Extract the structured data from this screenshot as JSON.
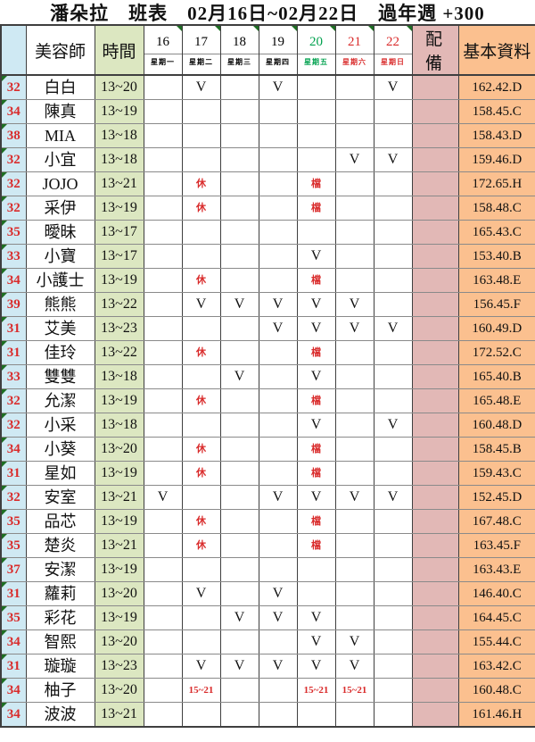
{
  "title": "潘朵拉　班表　02月16日~02月22日　過年週 +300",
  "header": {
    "beautician": "美容師",
    "time": "時間",
    "equipment": "配 備",
    "basic_info": "基本資料"
  },
  "days": [
    {
      "date": "16",
      "weekday": "星期一",
      "tone": "black"
    },
    {
      "date": "17",
      "weekday": "星期二",
      "tone": "black"
    },
    {
      "date": "18",
      "weekday": "星期三",
      "tone": "black"
    },
    {
      "date": "19",
      "weekday": "星期四",
      "tone": "black"
    },
    {
      "date": "20",
      "weekday": "星期五",
      "tone": "green"
    },
    {
      "date": "21",
      "weekday": "星期六",
      "tone": "red"
    },
    {
      "date": "22",
      "weekday": "星期日",
      "tone": "red"
    }
  ],
  "rows": [
    {
      "num": "32",
      "name": "白白",
      "time": "13~20",
      "days": [
        "",
        "V",
        "",
        "V",
        "",
        "",
        "V"
      ],
      "equipment": "",
      "info": "162.42.D"
    },
    {
      "num": "34",
      "name": "陳真",
      "time": "13~19",
      "days": [
        "",
        "",
        "",
        "",
        "",
        "",
        ""
      ],
      "equipment": "",
      "info": "158.45.C"
    },
    {
      "num": "38",
      "name": "MIA",
      "time": "13~18",
      "days": [
        "",
        "",
        "",
        "",
        "",
        "",
        ""
      ],
      "equipment": "",
      "info": "158.43.D"
    },
    {
      "num": "32",
      "name": "小宜",
      "time": "13~18",
      "days": [
        "",
        "",
        "",
        "",
        "",
        "V",
        "V"
      ],
      "equipment": "",
      "info": "159.46.D"
    },
    {
      "num": "32",
      "name": "JOJO",
      "time": "13~21",
      "days": [
        "",
        "休",
        "",
        "",
        "檔",
        "",
        ""
      ],
      "equipment": "",
      "info": "172.65.H"
    },
    {
      "num": "32",
      "name": "采伊",
      "time": "13~19",
      "days": [
        "",
        "休",
        "",
        "",
        "檔",
        "",
        ""
      ],
      "equipment": "",
      "info": "158.48.C"
    },
    {
      "num": "35",
      "name": "曖昧",
      "time": "13~17",
      "days": [
        "",
        "",
        "",
        "",
        "",
        "",
        ""
      ],
      "equipment": "",
      "info": "165.43.C"
    },
    {
      "num": "33",
      "name": "小寶",
      "time": "13~17",
      "days": [
        "",
        "",
        "",
        "",
        "V",
        "",
        ""
      ],
      "equipment": "",
      "info": "153.40.B"
    },
    {
      "num": "34",
      "name": "小護士",
      "time": "13~19",
      "days": [
        "",
        "休",
        "",
        "",
        "檔",
        "",
        ""
      ],
      "equipment": "",
      "info": "163.48.E"
    },
    {
      "num": "39",
      "name": "熊熊",
      "time": "13~22",
      "days": [
        "",
        "V",
        "V",
        "V",
        "V",
        "V",
        ""
      ],
      "equipment": "",
      "info": "156.45.F"
    },
    {
      "num": "31",
      "name": "艾美",
      "time": "13~23",
      "days": [
        "",
        "",
        "",
        "V",
        "V",
        "V",
        "V"
      ],
      "equipment": "",
      "info": "160.49.D"
    },
    {
      "num": "31",
      "name": "佳玲",
      "time": "13~22",
      "days": [
        "",
        "休",
        "",
        "",
        "檔",
        "",
        ""
      ],
      "equipment": "",
      "info": "172.52.C"
    },
    {
      "num": "33",
      "name": "雙雙",
      "time": "13~18",
      "days": [
        "",
        "",
        "V",
        "",
        "V",
        "",
        ""
      ],
      "equipment": "",
      "info": "165.40.B"
    },
    {
      "num": "32",
      "name": "允潔",
      "time": "13~19",
      "days": [
        "",
        "休",
        "",
        "",
        "檔",
        "",
        ""
      ],
      "equipment": "",
      "info": "165.48.E"
    },
    {
      "num": "32",
      "name": "小采",
      "time": "13~18",
      "days": [
        "",
        "",
        "",
        "",
        "V",
        "",
        "V"
      ],
      "equipment": "",
      "info": "160.48.D"
    },
    {
      "num": "34",
      "name": "小葵",
      "time": "13~20",
      "days": [
        "",
        "休",
        "",
        "",
        "檔",
        "",
        ""
      ],
      "equipment": "",
      "info": "158.45.B"
    },
    {
      "num": "31",
      "name": "星如",
      "time": "13~19",
      "days": [
        "",
        "休",
        "",
        "",
        "檔",
        "",
        ""
      ],
      "equipment": "",
      "info": "159.43.C"
    },
    {
      "num": "32",
      "name": "安室",
      "time": "13~21",
      "days": [
        "V",
        "",
        "",
        "V",
        "V",
        "V",
        "V"
      ],
      "equipment": "",
      "info": "152.45.D"
    },
    {
      "num": "35",
      "name": "品芯",
      "time": "13~19",
      "days": [
        "",
        "休",
        "",
        "",
        "檔",
        "",
        ""
      ],
      "equipment": "",
      "info": "167.48.C"
    },
    {
      "num": "35",
      "name": "楚炎",
      "time": "13~21",
      "days": [
        "",
        "休",
        "",
        "",
        "檔",
        "",
        ""
      ],
      "equipment": "",
      "info": "163.45.F"
    },
    {
      "num": "37",
      "name": "安潔",
      "time": "13~19",
      "days": [
        "",
        "",
        "",
        "",
        "",
        "",
        ""
      ],
      "equipment": "",
      "info": "163.43.E"
    },
    {
      "num": "31",
      "name": "蘿莉",
      "time": "13~20",
      "days": [
        "",
        "V",
        "",
        "V",
        "",
        "",
        ""
      ],
      "equipment": "",
      "info": "146.40.C"
    },
    {
      "num": "35",
      "name": "彩花",
      "time": "13~19",
      "days": [
        "",
        "",
        "V",
        "V",
        "V",
        "",
        ""
      ],
      "equipment": "",
      "info": "164.45.C"
    },
    {
      "num": "34",
      "name": "智熙",
      "time": "13~20",
      "days": [
        "",
        "",
        "",
        "",
        "V",
        "V",
        ""
      ],
      "equipment": "",
      "info": "155.44.C"
    },
    {
      "num": "31",
      "name": "璇璇",
      "time": "13~23",
      "days": [
        "",
        "V",
        "V",
        "V",
        "V",
        "V",
        ""
      ],
      "equipment": "",
      "info": "163.42.C"
    },
    {
      "num": "34",
      "name": "柚子",
      "time": "13~20",
      "days": [
        "",
        "15~21",
        "",
        "",
        "15~21",
        "15~21",
        ""
      ],
      "equipment": "",
      "info": "160.48.C"
    },
    {
      "num": "34",
      "name": "波波",
      "time": "13~21",
      "days": [
        "",
        "",
        "",
        "",
        "",
        "",
        ""
      ],
      "equipment": "",
      "info": "161.46.H"
    }
  ],
  "colors": {
    "row_num_bg": "#cfe9f3",
    "time_bg": "#dce7c1",
    "equipment_bg": "#e2b8b6",
    "info_bg": "#fbc08f",
    "red_text": "#d92b2b",
    "green_text": "#00a14e",
    "flag_green": "#1e6e23"
  }
}
